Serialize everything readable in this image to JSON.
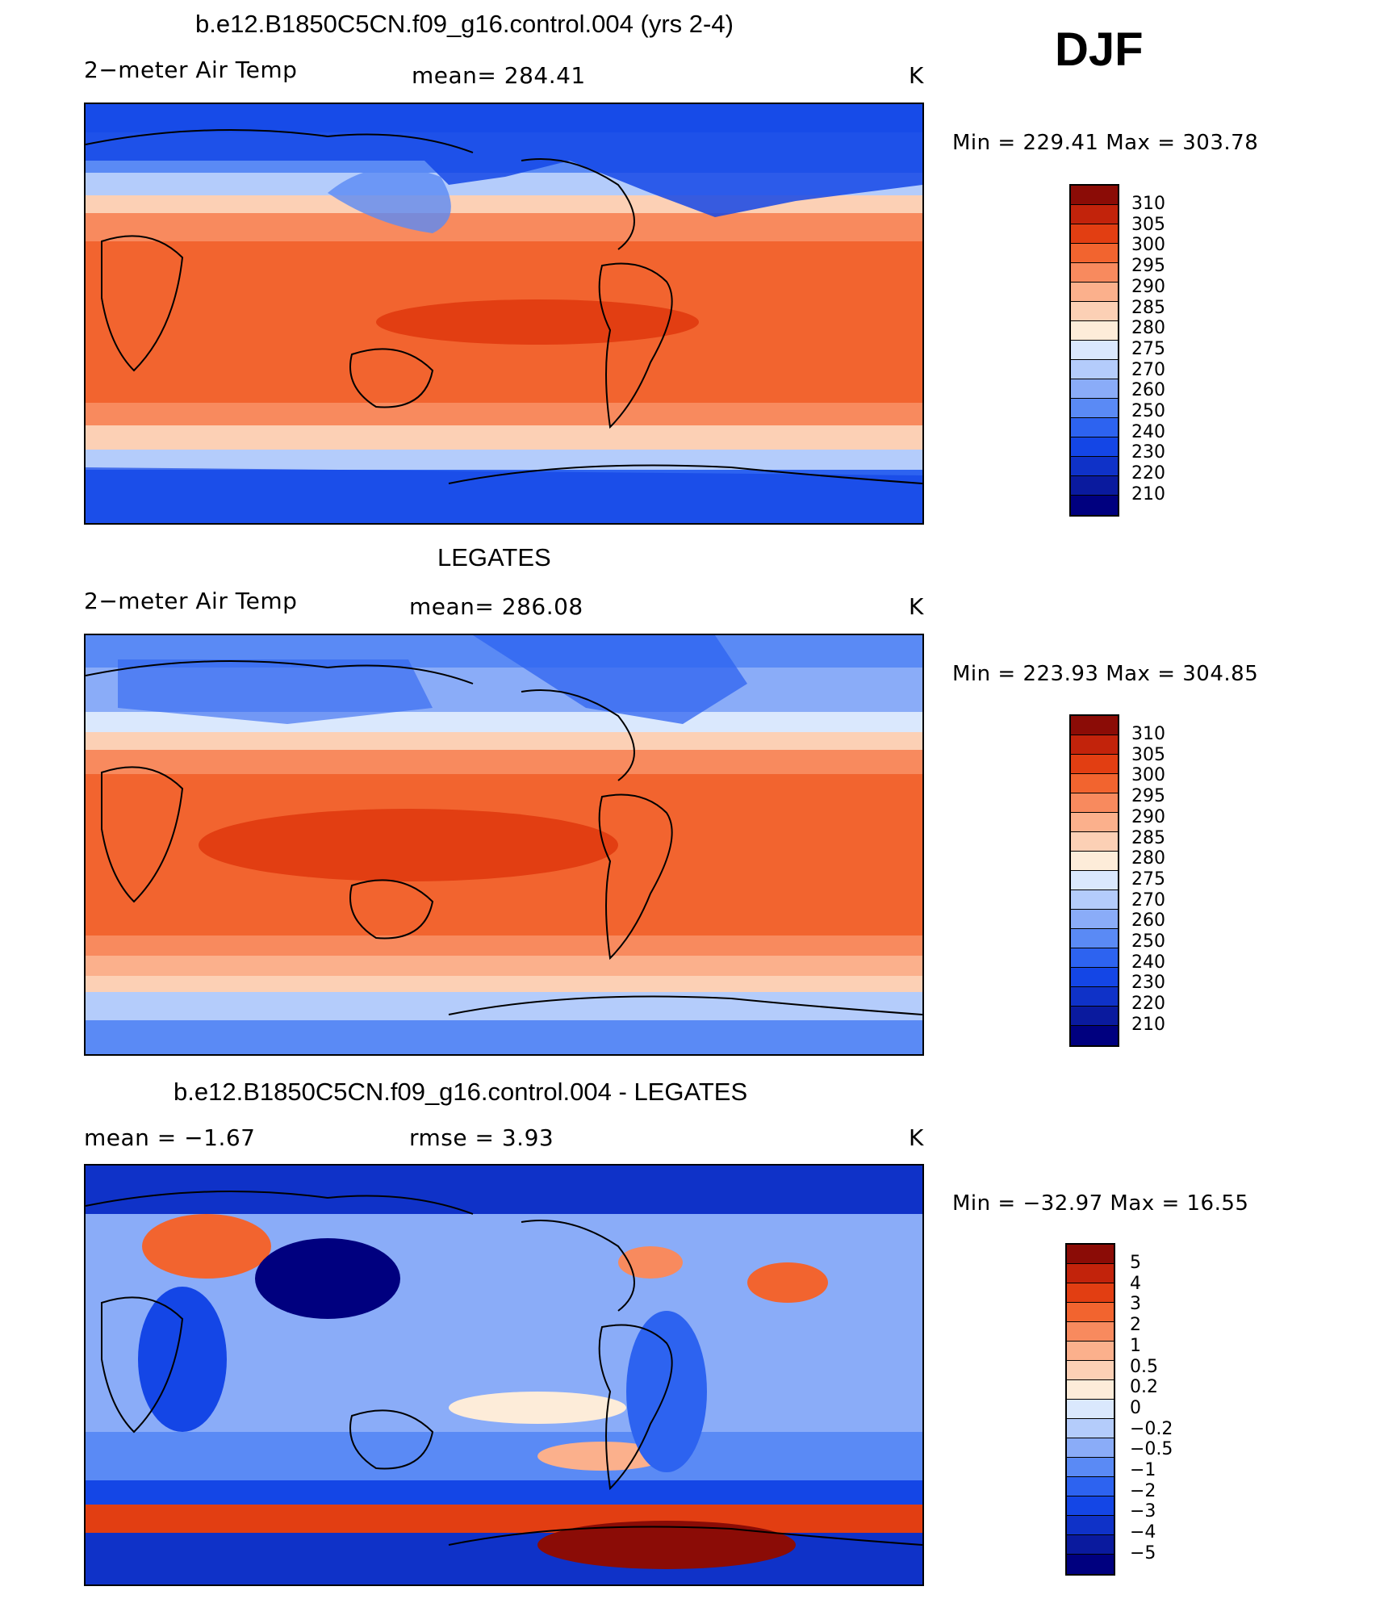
{
  "season": "DJF",
  "units": "K",
  "colors": {
    "temp_scale": [
      "#00007f",
      "#0a1a9e",
      "#0f32c8",
      "#1446e6",
      "#2d63f0",
      "#5a8af5",
      "#8aacf8",
      "#b4ccfb",
      "#dae8fd",
      "#fdecd9",
      "#fcd0b5",
      "#fbb08c",
      "#f88a5e",
      "#f2642f",
      "#e23e12",
      "#c2230b",
      "#8b0c06"
    ],
    "diff_scale": [
      "#00007f",
      "#0a1a9e",
      "#0f32c8",
      "#1446e6",
      "#2d63f0",
      "#5a8af5",
      "#8aacf8",
      "#b4ccfb",
      "#dae8fd",
      "#fdecd9",
      "#fcd0b5",
      "#fbb08c",
      "#f88a5e",
      "#f2642f",
      "#e23e12",
      "#c2230b",
      "#8b0c06"
    ]
  },
  "panels": [
    {
      "title": "b.e12.B1850C5CN.f09_g16.control.004 (yrs 2-4)",
      "left_label": "2−meter Air Temp",
      "center_label": "mean=  284.41",
      "right_label": "K",
      "minmax": "Min  =  229.41  Max  =  303.78",
      "colorbar_labels": [
        "310",
        "305",
        "300",
        "295",
        "290",
        "285",
        "280",
        "275",
        "270",
        "260",
        "250",
        "240",
        "230",
        "220",
        "210"
      ]
    },
    {
      "title": "LEGATES",
      "left_label": "2−meter Air Temp",
      "center_label": "mean=  286.08",
      "right_label": "K",
      "minmax": "Min  =  223.93  Max  =  304.85",
      "colorbar_labels": [
        "310",
        "305",
        "300",
        "295",
        "290",
        "285",
        "280",
        "275",
        "270",
        "260",
        "250",
        "240",
        "230",
        "220",
        "210"
      ]
    },
    {
      "title": "b.e12.B1850C5CN.f09_g16.control.004 - LEGATES",
      "left_label": "mean  =    −1.67",
      "center_label": "rmse  =     3.93",
      "right_label": "K",
      "minmax": "Min  =  −32.97  Max  =    16.55",
      "colorbar_labels": [
        "5",
        "4",
        "3",
        "2",
        "1",
        "0.5",
        "0.2",
        "0",
        "−0.2",
        "−0.5",
        "−1",
        "−2",
        "−3",
        "−4",
        "−5"
      ]
    }
  ]
}
